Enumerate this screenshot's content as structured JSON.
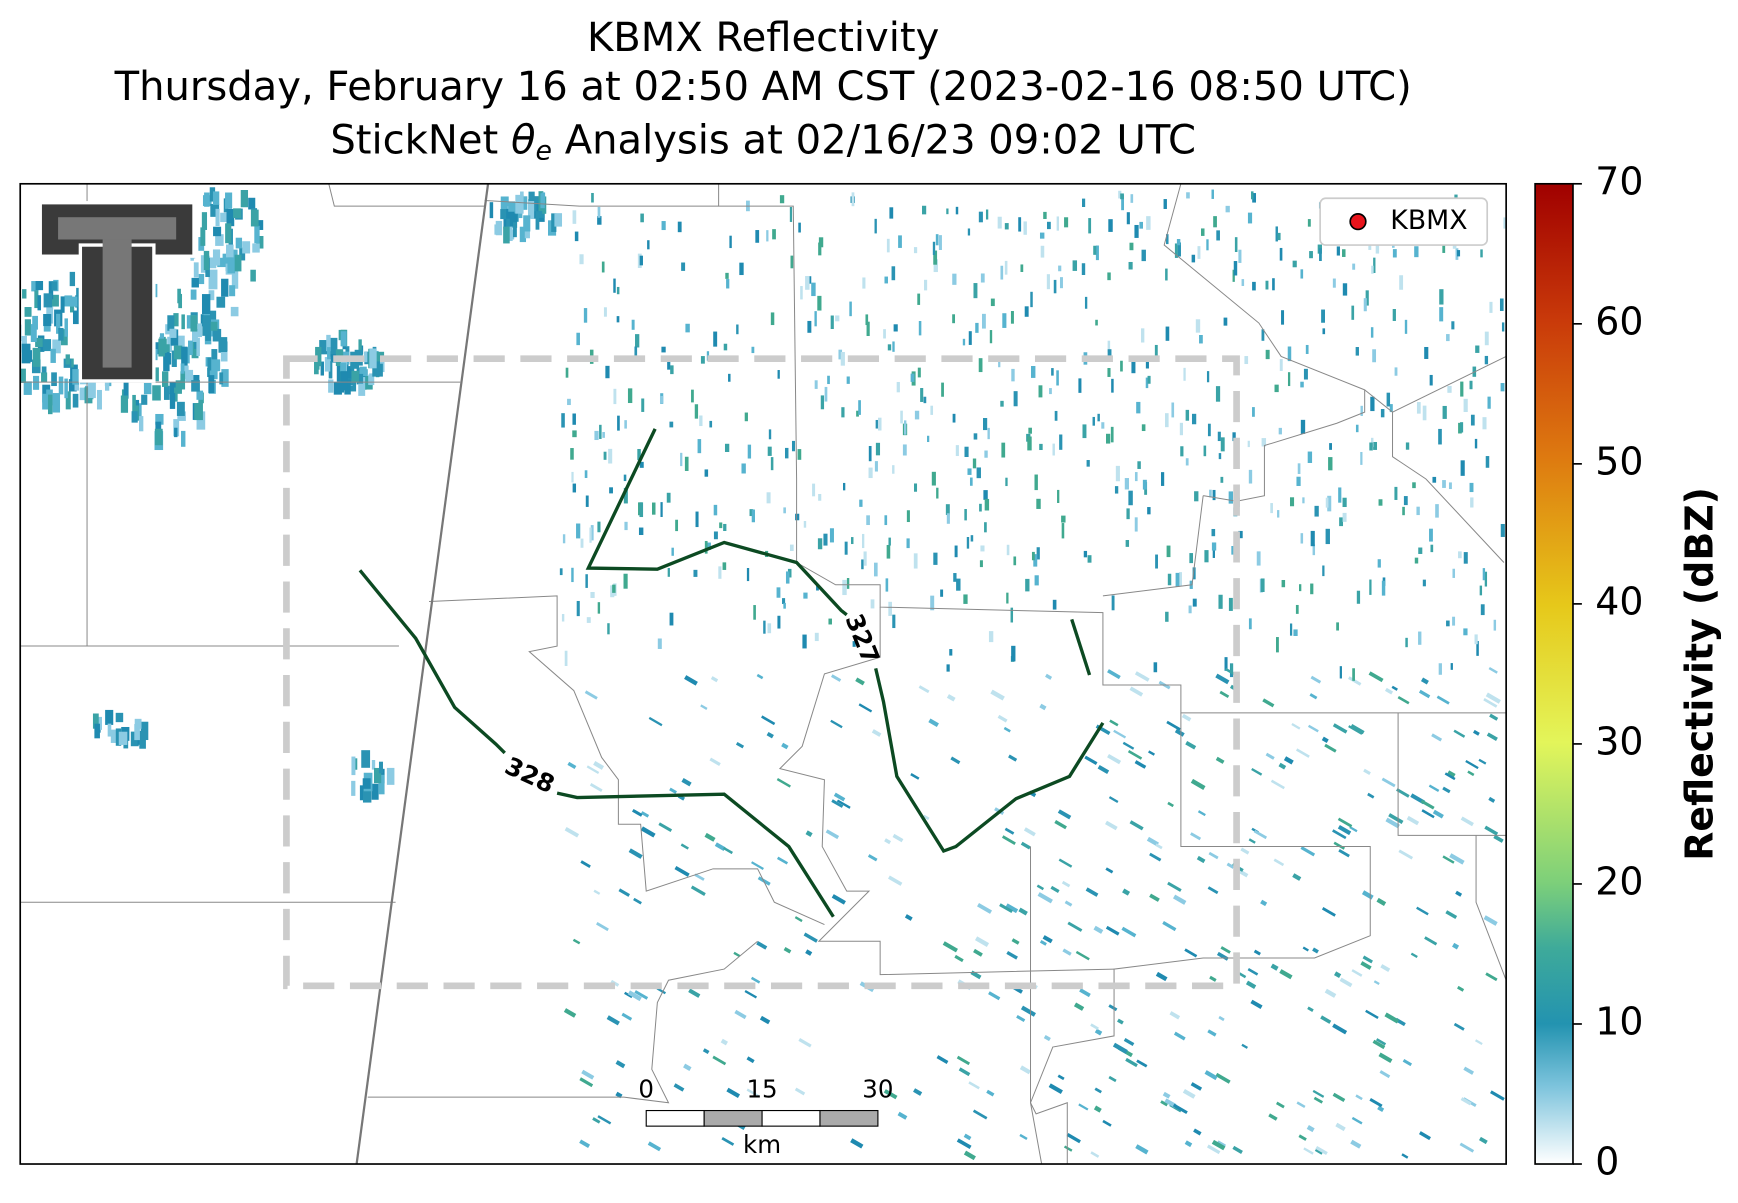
{
  "title": {
    "line1": "KBMX Reflectivity",
    "line2": "Thursday, February 16 at 02:50 AM CST (2023-02-16 08:50 UTC)",
    "line3": {
      "before": "StickNet ",
      "symbol": "θ",
      "subscript": "e",
      "after": " Analysis at 02/16/23 09:02 UTC"
    }
  },
  "legend": {
    "label": "KBMX"
  },
  "colorbar": {
    "label": "Reflectivity (dBZ)",
    "lim": [
      0,
      70
    ],
    "ticks": [
      0,
      10,
      20,
      30,
      40,
      50,
      60,
      70
    ]
  },
  "scale_bar": {
    "labels": [
      "0",
      "15",
      "30"
    ],
    "unit": "km"
  },
  "contours": [
    {
      "label": "328"
    },
    {
      "label": "327"
    }
  ]
}
